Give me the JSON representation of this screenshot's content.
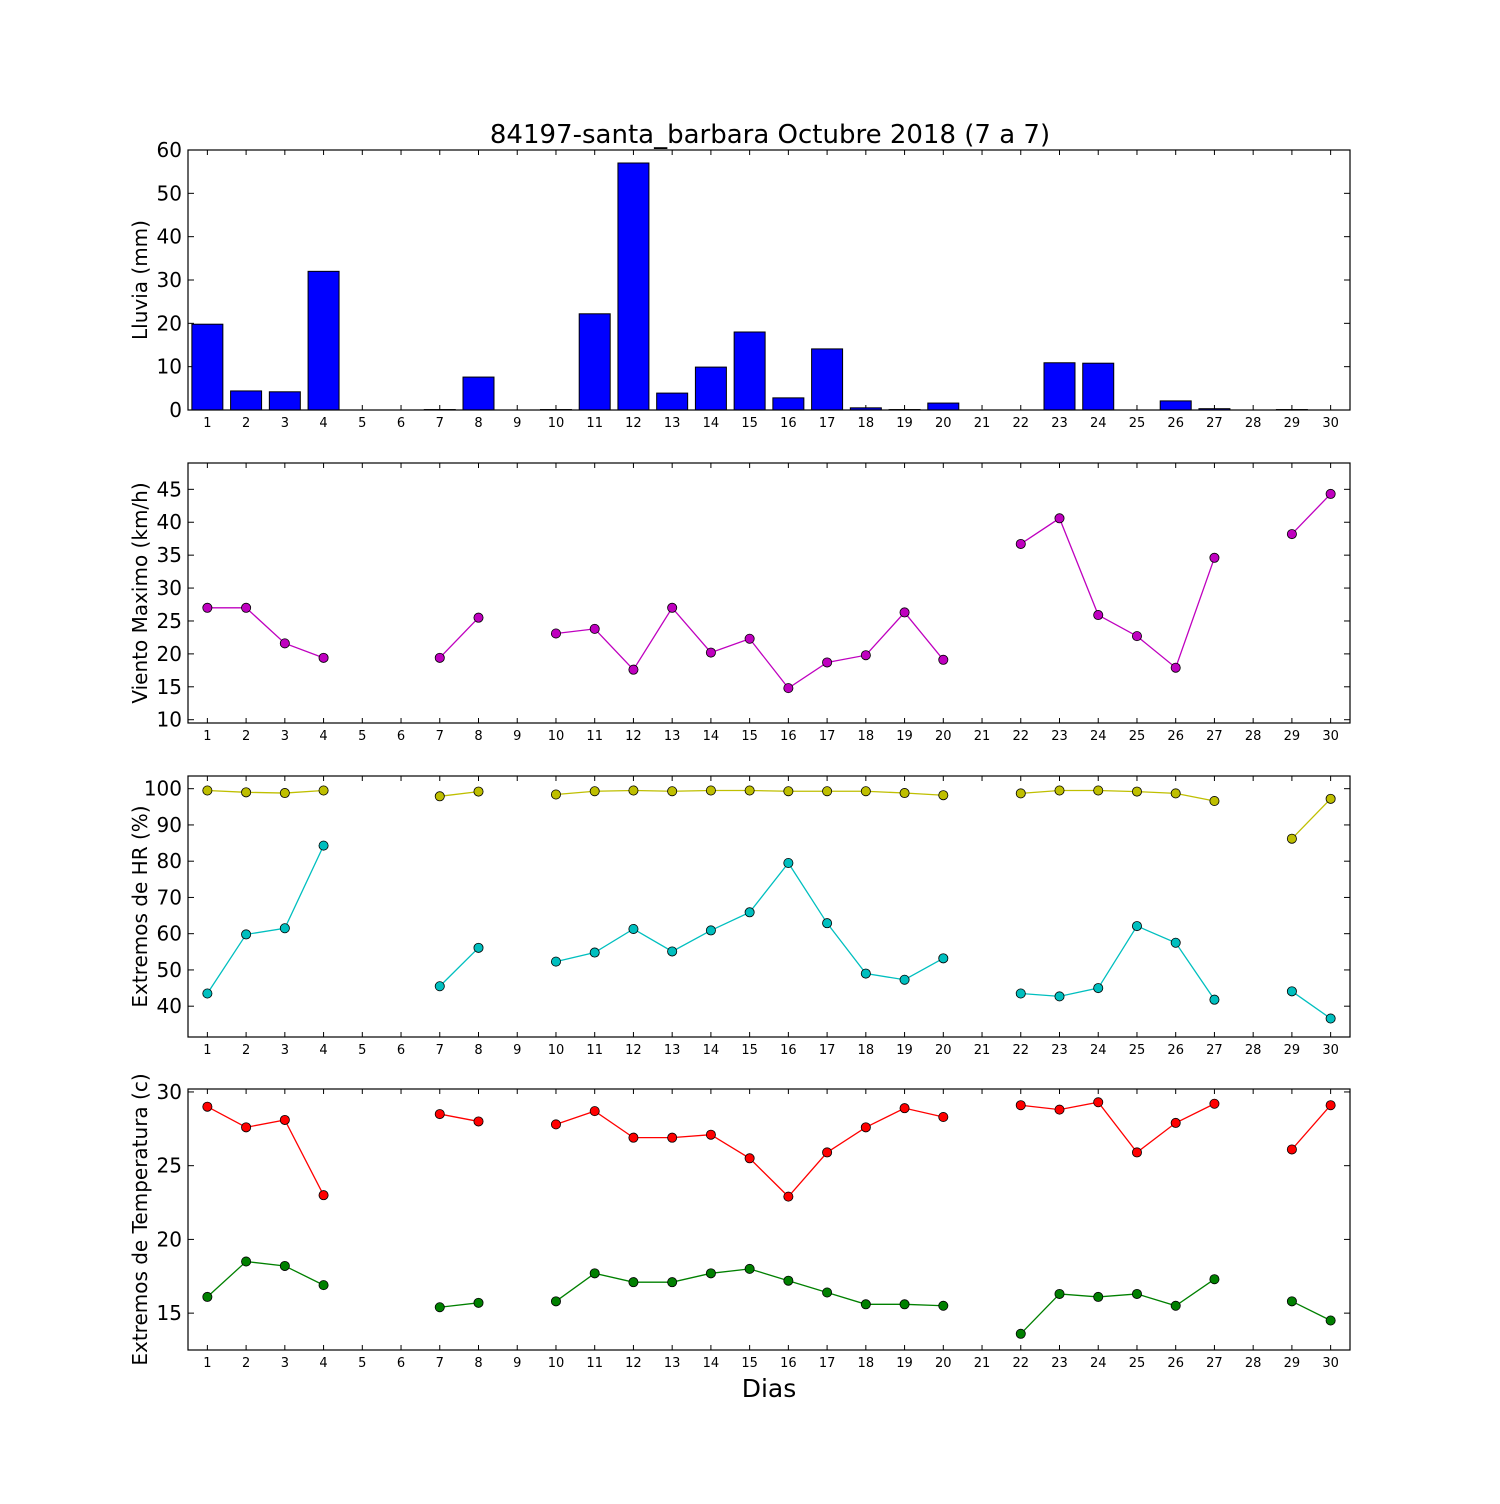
{
  "chart_data": {
    "title": "84197-santa_barbara Octubre 2018  (7 a 7)",
    "xlabel": "Dias",
    "days": [
      1,
      2,
      3,
      4,
      5,
      6,
      7,
      8,
      9,
      10,
      11,
      12,
      13,
      14,
      15,
      16,
      17,
      18,
      19,
      20,
      21,
      22,
      23,
      24,
      25,
      26,
      27,
      28,
      29,
      30
    ],
    "panels": [
      {
        "type": "bar",
        "ylabel": "Lluvia (mm)",
        "ylim": [
          0,
          60
        ],
        "yticks": [
          0,
          10,
          20,
          30,
          40,
          50,
          60
        ],
        "series": [
          {
            "color": "#0000ff",
            "values": [
              19.8,
              4.4,
              4.2,
              32.0,
              0,
              0,
              0.1,
              7.6,
              0,
              0.1,
              22.2,
              57.0,
              3.9,
              9.9,
              18.0,
              2.8,
              14.1,
              0.5,
              0.1,
              1.6,
              0,
              0,
              10.9,
              10.8,
              0,
              2.1,
              0.3,
              0,
              0.1,
              0
            ]
          }
        ]
      },
      {
        "type": "line",
        "ylabel": "Viento Maximo (km/h)",
        "ylim": [
          9.5,
          49
        ],
        "yticks": [
          10,
          15,
          20,
          25,
          30,
          35,
          40,
          45
        ],
        "series": [
          {
            "color": "#bf00bf",
            "values": [
              27.0,
              27.0,
              21.6,
              19.4,
              null,
              null,
              19.4,
              25.5,
              null,
              23.1,
              23.8,
              17.6,
              27.0,
              20.2,
              22.3,
              14.8,
              18.7,
              19.8,
              26.3,
              19.1,
              null,
              36.7,
              40.6,
              25.9,
              22.7,
              17.9,
              34.6,
              null,
              38.2,
              44.3
            ]
          }
        ]
      },
      {
        "type": "line",
        "ylabel": "Extremos de HR (%)",
        "ylim": [
          31.5,
          103.5
        ],
        "yticks": [
          40,
          50,
          60,
          70,
          80,
          90,
          100
        ],
        "series": [
          {
            "color": "#bfbf00",
            "values": [
              99.5,
              99.0,
              98.8,
              99.5,
              null,
              null,
              97.9,
              99.2,
              null,
              98.4,
              99.3,
              99.5,
              99.3,
              99.5,
              99.5,
              99.3,
              99.3,
              99.3,
              98.8,
              98.2,
              null,
              98.7,
              99.5,
              99.5,
              99.2,
              98.7,
              96.6,
              null,
              86.2,
              97.2
            ]
          },
          {
            "color": "#00bfbf",
            "values": [
              43.5,
              59.8,
              61.5,
              84.3,
              null,
              null,
              45.5,
              56.1,
              null,
              52.3,
              54.8,
              61.3,
              55.1,
              60.9,
              65.9,
              79.5,
              62.9,
              49.0,
              47.3,
              53.2,
              null,
              43.5,
              42.7,
              45.0,
              62.1,
              57.5,
              41.8,
              null,
              44.1,
              36.6
            ]
          }
        ]
      },
      {
        "type": "line",
        "ylabel": "Extremos de Temperatura (c)",
        "ylim": [
          12.5,
          30.2
        ],
        "yticks": [
          15,
          20,
          25,
          30
        ],
        "series": [
          {
            "color": "#ff0000",
            "values": [
              29.0,
              27.6,
              28.1,
              23.0,
              null,
              null,
              28.5,
              28.0,
              null,
              27.8,
              28.7,
              26.9,
              26.9,
              27.1,
              25.5,
              22.9,
              25.9,
              27.6,
              28.9,
              28.3,
              null,
              29.1,
              28.8,
              29.3,
              25.9,
              27.9,
              29.2,
              null,
              26.1,
              29.1
            ]
          },
          {
            "color": "#008000",
            "values": [
              16.1,
              18.5,
              18.2,
              16.9,
              null,
              null,
              15.4,
              15.7,
              null,
              15.8,
              17.7,
              17.1,
              17.1,
              17.7,
              18.0,
              17.2,
              16.4,
              15.6,
              15.6,
              15.5,
              null,
              13.6,
              16.3,
              16.1,
              16.3,
              15.5,
              17.3,
              null,
              15.8,
              14.5
            ]
          }
        ]
      }
    ]
  }
}
